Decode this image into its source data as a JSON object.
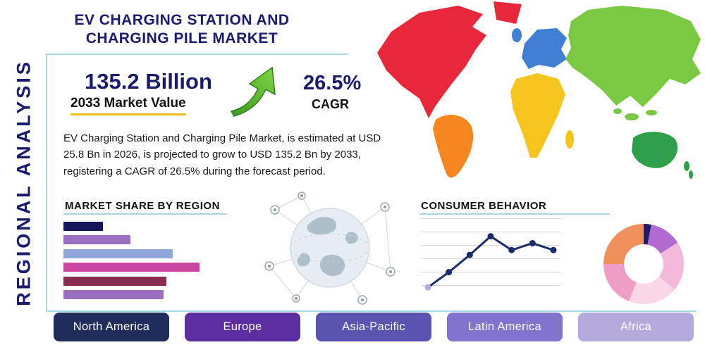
{
  "page": {
    "title": "EV CHARGING STATION AND CHARGING PILE MARKET",
    "side_label": "REGIONAL ANALYSIS"
  },
  "stats": {
    "market_value": "135.2 Billion",
    "market_value_label": "2033 Market Value",
    "cagr": "26.5%",
    "cagr_label": "CAGR",
    "arrow_color": "#5cb832"
  },
  "description": "EV Charging Station and Charging Pile Market, is estimated at USD 25.8 Bn in 2026, is projected to grow to USD 135.2 Bn by 2033, registering a CAGR of 26.5% during the forecast period.",
  "sections": {
    "market_share": "MARKET SHARE BY REGION",
    "consumer_behavior": "CONSUMER BEHAVIOR"
  },
  "regions": [
    {
      "label": "North America",
      "color": "#1f2d5c"
    },
    {
      "label": "Europe",
      "color": "#5b2d9e"
    },
    {
      "label": "Asia-Pacific",
      "color": "#5854b0"
    },
    {
      "label": "Latin America",
      "color": "#8273cc"
    },
    {
      "label": "Africa",
      "color": "#b5aadd"
    }
  ],
  "map": {
    "colors": {
      "north-america": "#e8273a",
      "greenland": "#e8273a",
      "south-america": "#f5861f",
      "europe": "#3f7fd4",
      "uk": "#3f7fd4",
      "africa": "#f5c51d",
      "madagascar": "#f5c51d",
      "asia": "#7ac943",
      "islands": "#7ac943",
      "australia": "#2ea04a",
      "new-zealand": "#2ea04a"
    }
  },
  "chart_data": [
    {
      "type": "bar",
      "title": "MARKET SHARE BY REGION",
      "orientation": "horizontal",
      "xlim": [
        0,
        100
      ],
      "grid": false,
      "bars": [
        {
          "name": "bar-1",
          "value": 24,
          "color": "#14165c"
        },
        {
          "name": "bar-2",
          "value": 41,
          "color": "#9a6fc0"
        },
        {
          "name": "bar-3",
          "value": 67,
          "color": "#8fa6dc"
        },
        {
          "name": "bar-4",
          "value": 83,
          "color": "#c9479e"
        },
        {
          "name": "bar-5",
          "value": 63,
          "color": "#8a2b52"
        },
        {
          "name": "bar-6",
          "value": 61,
          "color": "#9a6fc0"
        }
      ]
    },
    {
      "type": "line",
      "title": "CONSUMER BEHAVIOR",
      "x": [
        1,
        2,
        3,
        4,
        5,
        6,
        7
      ],
      "values": [
        8,
        30,
        55,
        82,
        62,
        72,
        62
      ],
      "ylim": [
        0,
        100
      ],
      "grid": true,
      "line_color": "#1b2a6b",
      "marker_color": "#1b2a6b",
      "first_marker_color": "#b9a8e0"
    },
    {
      "type": "pie",
      "title": "Regional share donut",
      "donut": true,
      "slices": [
        {
          "value": 3,
          "color": "#1a1a6e"
        },
        {
          "value": 13,
          "color": "#b06ad0"
        },
        {
          "value": 20,
          "color": "#f3b9d9"
        },
        {
          "value": 20,
          "color": "#f9d7e6"
        },
        {
          "value": 19,
          "color": "#ee9ec4"
        },
        {
          "value": 25,
          "color": "#f0905c"
        }
      ]
    }
  ]
}
